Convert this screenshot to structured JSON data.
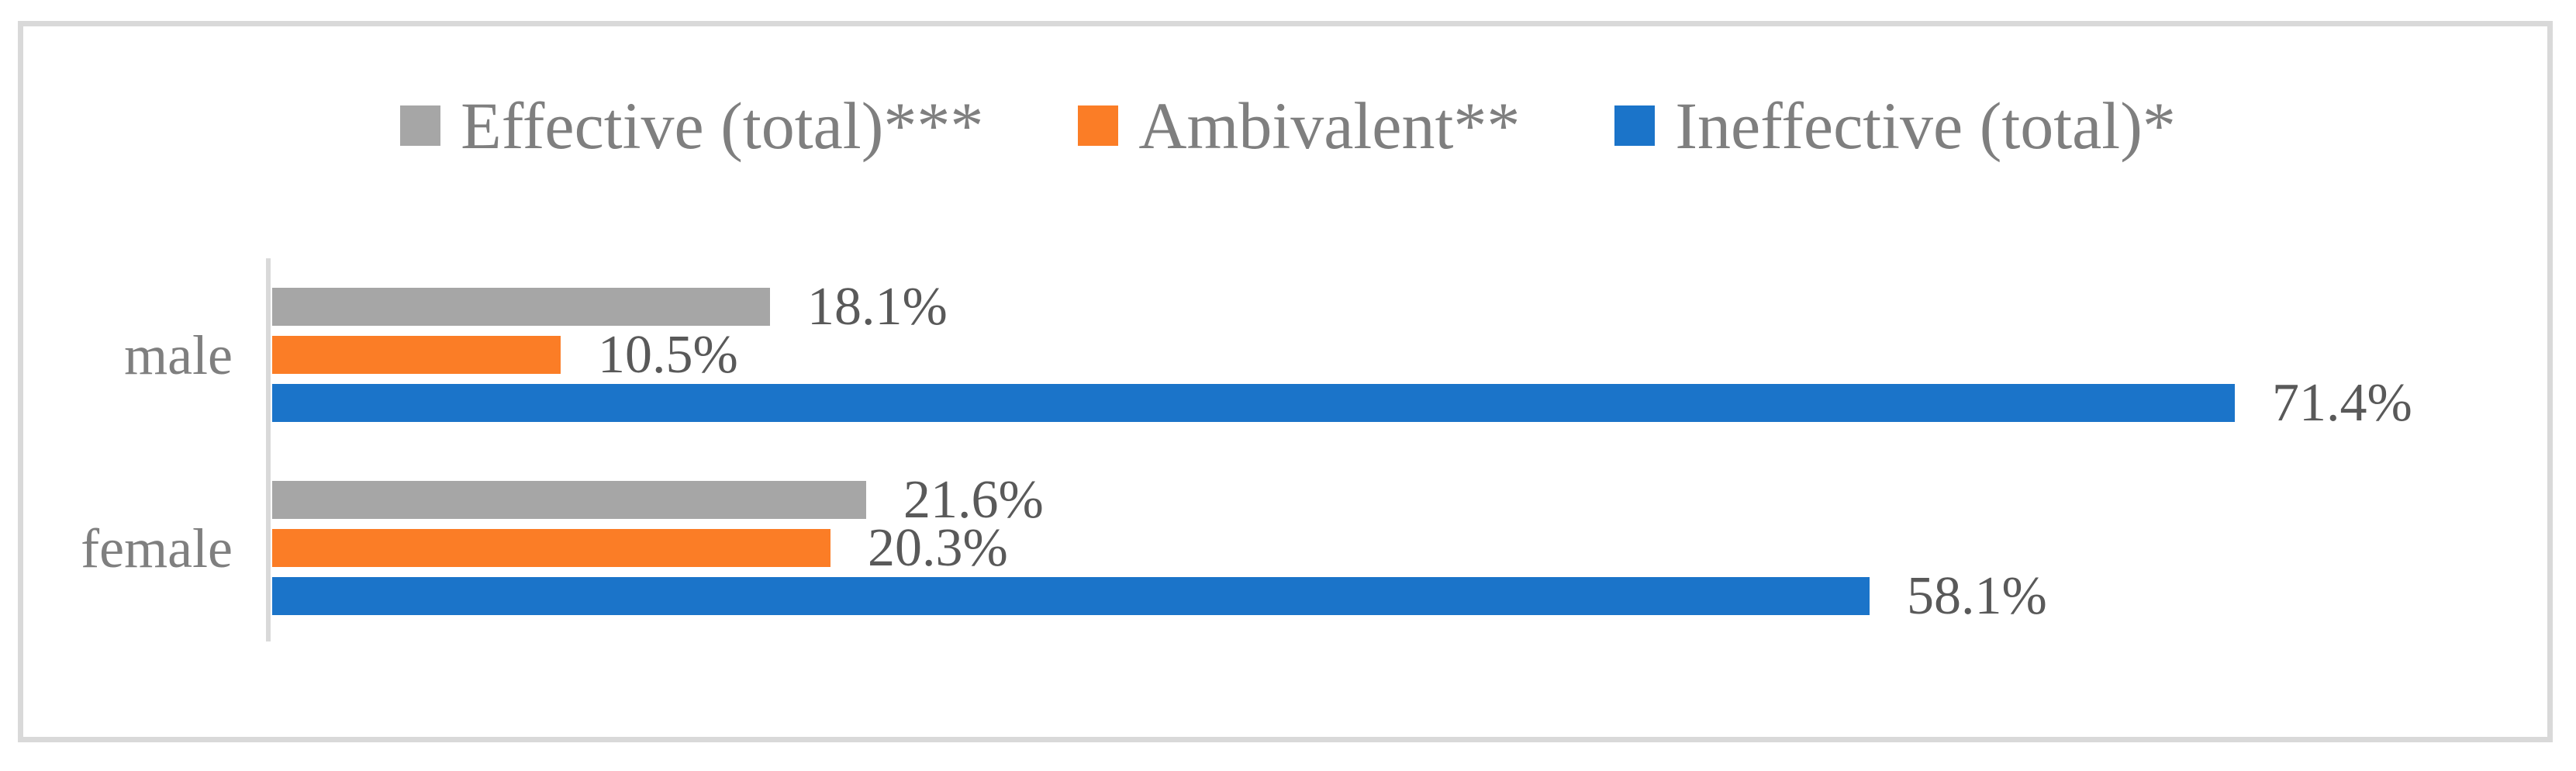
{
  "figure": {
    "frame_border_color": "#D9D9D9",
    "axis_line_color": "#D9D9D9",
    "background_color": "#ffffff",
    "legend_text_color": "#7F7F7F",
    "category_label_color": "#7F7F7F",
    "data_label_color": "#595959"
  },
  "chart_data": {
    "type": "bar",
    "orientation": "horizontal",
    "title": "",
    "xlabel": "",
    "ylabel": "",
    "categories": [
      "male",
      "female"
    ],
    "series": [
      {
        "name": "Effective (total)***",
        "color": "#A6A6A6",
        "values": [
          18.1,
          21.6
        ],
        "labels": [
          "18.1%",
          "21.6%"
        ]
      },
      {
        "name": "Ambivalent**",
        "color": "#FB7D26",
        "values": [
          10.5,
          20.3
        ],
        "labels": [
          "10.5%",
          "20.3%"
        ]
      },
      {
        "name": "Ineffective (total)*",
        "color": "#1B74C9",
        "values": [
          71.4,
          58.1
        ],
        "labels": [
          "71.4%",
          "58.1%"
        ]
      }
    ],
    "value_axis": {
      "min": 0,
      "max": 80,
      "visible": false
    },
    "category_axis_visible": true,
    "gridlines": false,
    "data_labels": true,
    "legend_position": "top"
  }
}
